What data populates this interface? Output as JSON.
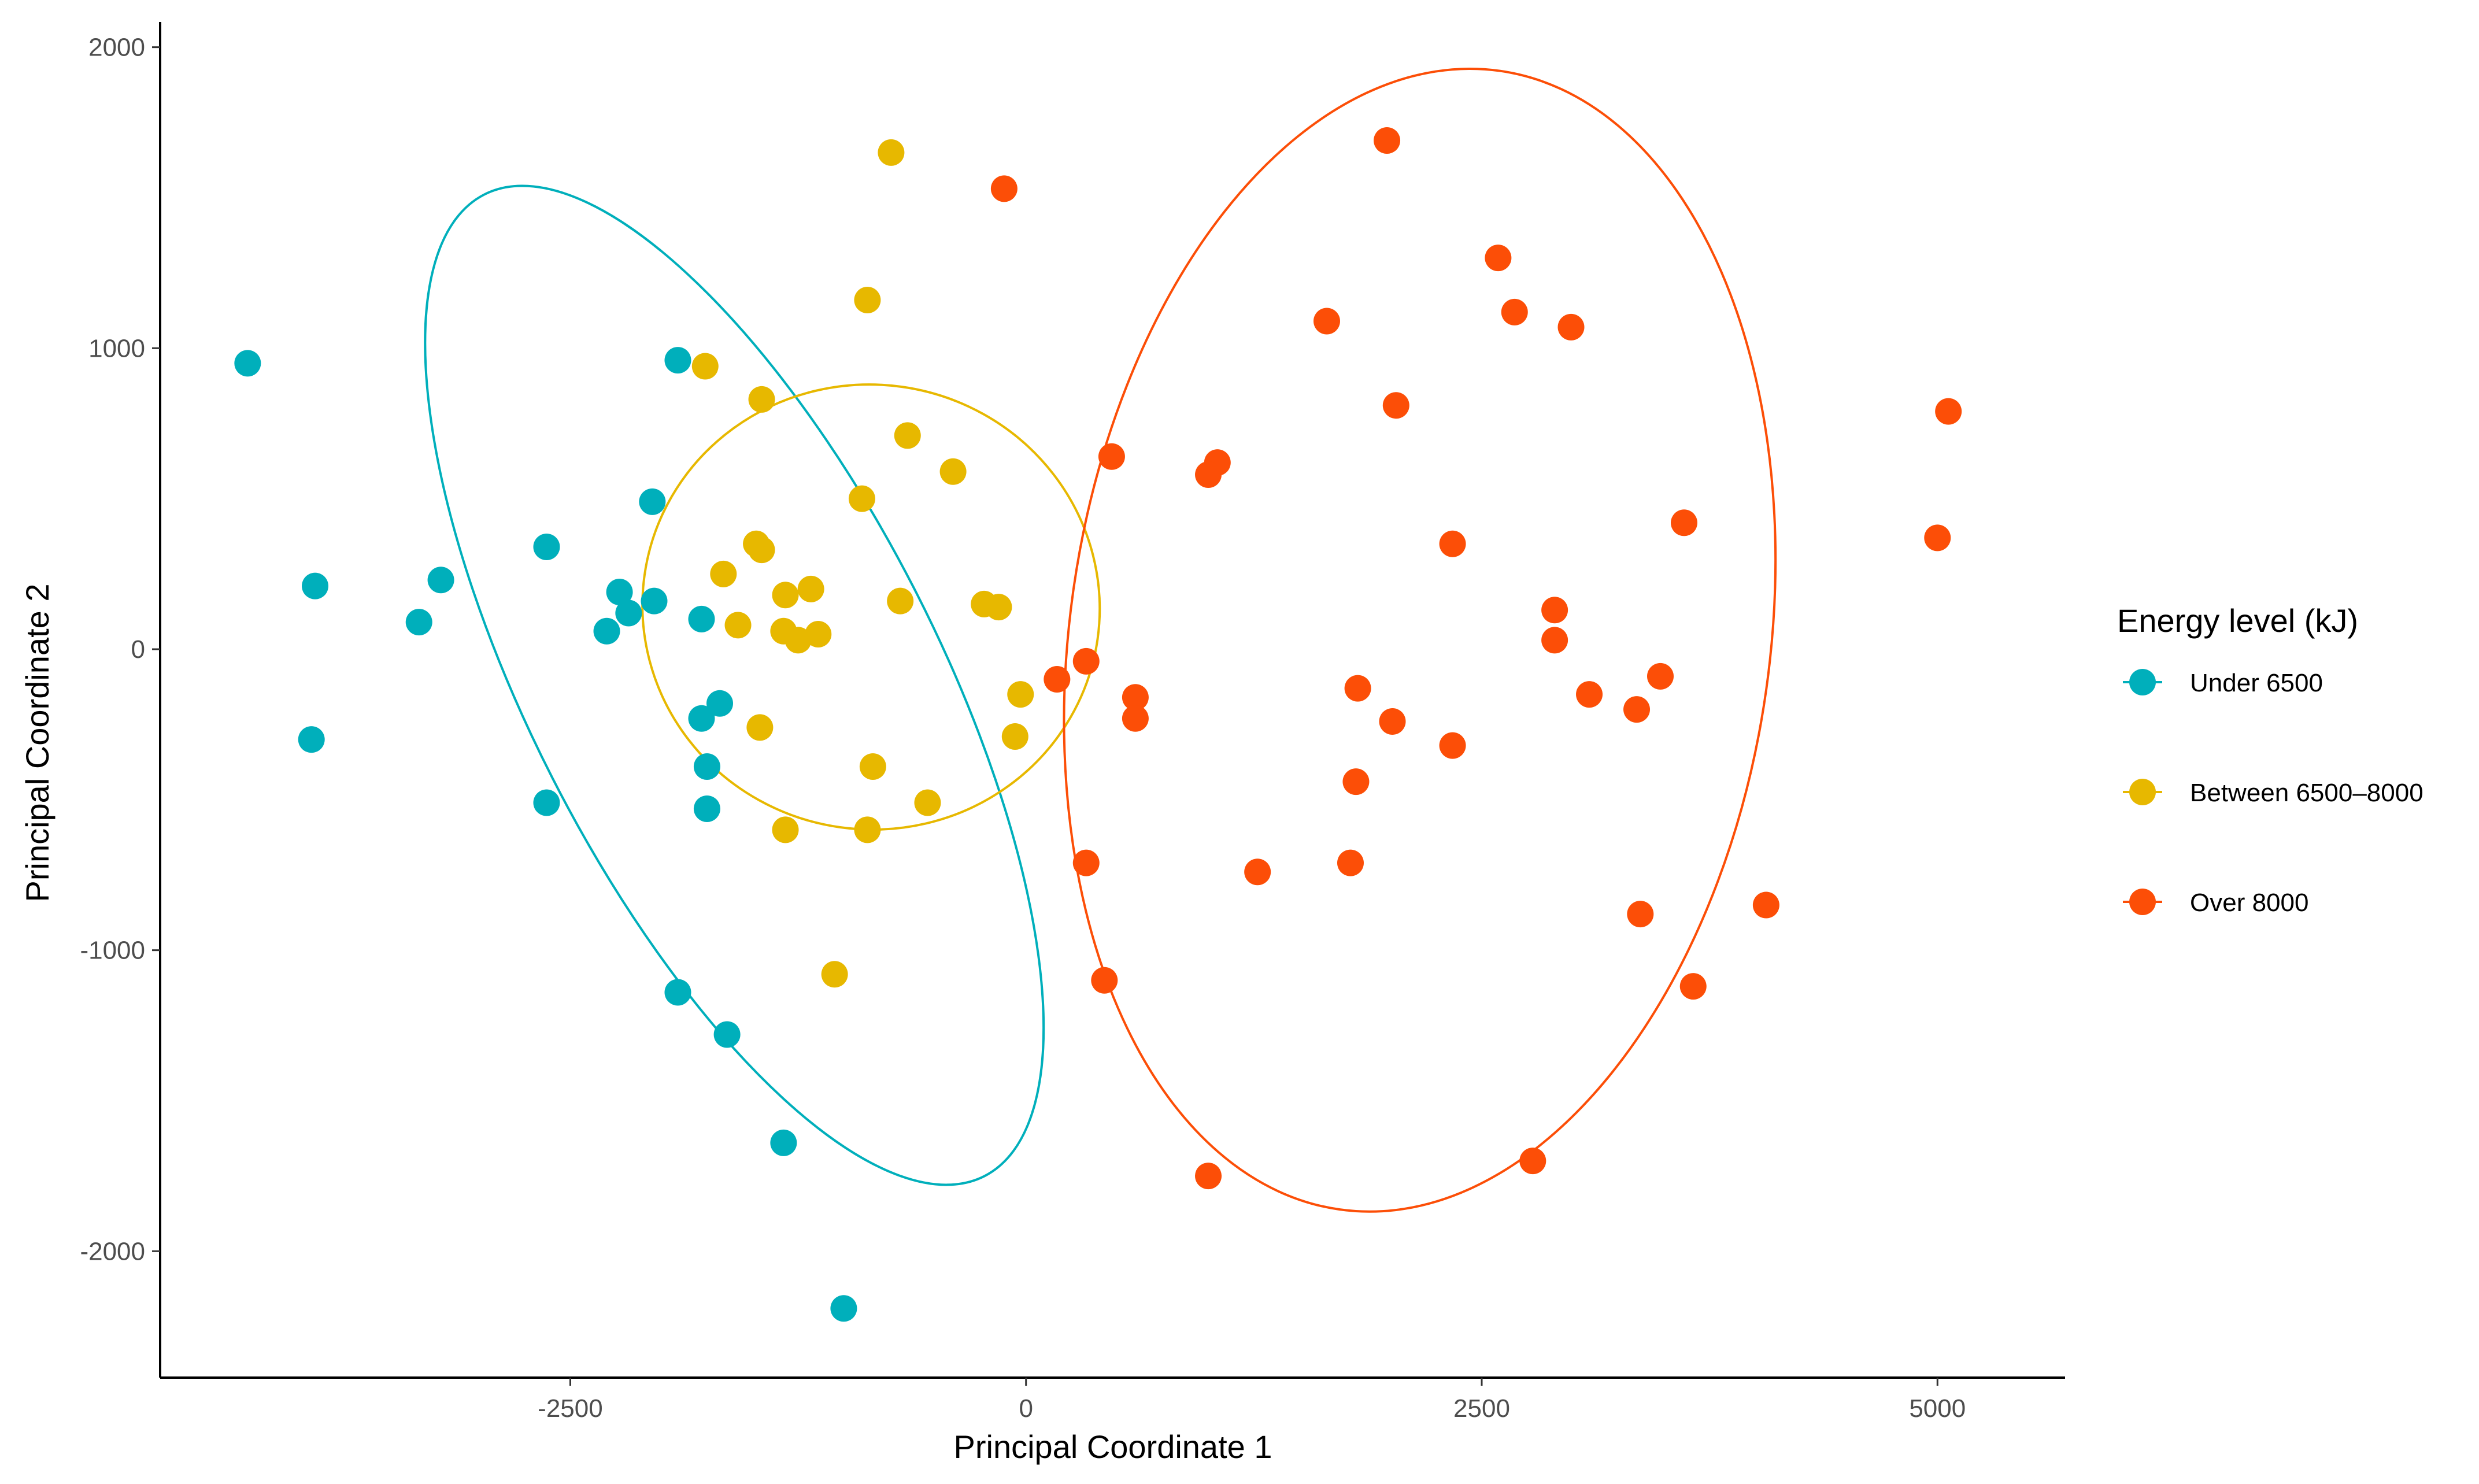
{
  "chart_data": {
    "type": "scatter",
    "xlabel": "Principal Coordinate 1",
    "ylabel": "Principal Coordinate 2",
    "xlim": [
      -4750,
      5700
    ],
    "ylim": [
      -2420,
      2080
    ],
    "xticks": [
      -2500,
      0,
      2500,
      5000
    ],
    "yticks": [
      -2000,
      -1000,
      0,
      1000,
      2000
    ],
    "grid": false,
    "legend": {
      "title": "Energy level (kJ)",
      "position": "right"
    },
    "series": [
      {
        "name": "Under 6500",
        "color": "#00AFBB",
        "ellipse": {
          "cx": -1600,
          "cy": -120,
          "rx": 1120,
          "ry": 1830,
          "rotation_deg": 27
        },
        "points": [
          [
            -4270,
            950
          ],
          [
            -3900,
            210
          ],
          [
            -3920,
            -300
          ],
          [
            -3330,
            90
          ],
          [
            -3210,
            230
          ],
          [
            -2630,
            340
          ],
          [
            -2630,
            -510
          ],
          [
            -2300,
            60
          ],
          [
            -2230,
            190
          ],
          [
            -2180,
            120
          ],
          [
            -2050,
            490
          ],
          [
            -2040,
            160
          ],
          [
            -1910,
            960
          ],
          [
            -1910,
            -1140
          ],
          [
            -1780,
            100
          ],
          [
            -1780,
            -230
          ],
          [
            -1750,
            -390
          ],
          [
            -1750,
            -530
          ],
          [
            -1680,
            -180
          ],
          [
            -1640,
            -1280
          ],
          [
            -1330,
            -1640
          ],
          [
            -1000,
            -2190
          ]
        ]
      },
      {
        "name": "Between 6500–8000",
        "color": "#E7B800",
        "ellipse": {
          "cx": -850,
          "cy": 140,
          "rx": 1220,
          "ry": 760,
          "rotation_deg": 82
        },
        "points": [
          [
            -740,
            1650
          ],
          [
            -870,
            1160
          ],
          [
            -1760,
            940
          ],
          [
            -1450,
            830
          ],
          [
            -650,
            710
          ],
          [
            -900,
            500
          ],
          [
            -400,
            590
          ],
          [
            -1480,
            350
          ],
          [
            -1450,
            330
          ],
          [
            -1660,
            250
          ],
          [
            -1320,
            180
          ],
          [
            -1180,
            200
          ],
          [
            -690,
            160
          ],
          [
            -230,
            150
          ],
          [
            -150,
            140
          ],
          [
            -1580,
            80
          ],
          [
            -1330,
            60
          ],
          [
            -1250,
            30
          ],
          [
            -1140,
            50
          ],
          [
            -30,
            -150
          ],
          [
            -1460,
            -260
          ],
          [
            -60,
            -290
          ],
          [
            -840,
            -390
          ],
          [
            -540,
            -510
          ],
          [
            -1320,
            -600
          ],
          [
            -870,
            -600
          ],
          [
            -1050,
            -1080
          ]
        ]
      },
      {
        "name": "Over 8000",
        "color": "#FC4E07",
        "ellipse": {
          "cx": 2160,
          "cy": 30,
          "rx": 1920,
          "ry": 1910,
          "rotation_deg": -8
        },
        "points": [
          [
            -120,
            1530
          ],
          [
            1980,
            1690
          ],
          [
            2590,
            1300
          ],
          [
            2680,
            1120
          ],
          [
            2990,
            1070
          ],
          [
            1650,
            1090
          ],
          [
            2030,
            810
          ],
          [
            5060,
            790
          ],
          [
            470,
            640
          ],
          [
            1050,
            620
          ],
          [
            1000,
            580
          ],
          [
            3610,
            420
          ],
          [
            2340,
            350
          ],
          [
            5000,
            370
          ],
          [
            2900,
            130
          ],
          [
            2900,
            30
          ],
          [
            3480,
            -90
          ],
          [
            3090,
            -150
          ],
          [
            3350,
            -200
          ],
          [
            170,
            -100
          ],
          [
            330,
            -40
          ],
          [
            600,
            -160
          ],
          [
            600,
            -230
          ],
          [
            1820,
            -130
          ],
          [
            2010,
            -240
          ],
          [
            2340,
            -320
          ],
          [
            1810,
            -440
          ],
          [
            1780,
            -710
          ],
          [
            1270,
            -740
          ],
          [
            330,
            -710
          ],
          [
            3370,
            -880
          ],
          [
            4060,
            -850
          ],
          [
            3660,
            -1120
          ],
          [
            430,
            -1100
          ],
          [
            1000,
            -1750
          ],
          [
            2780,
            -1700
          ]
        ]
      }
    ]
  }
}
